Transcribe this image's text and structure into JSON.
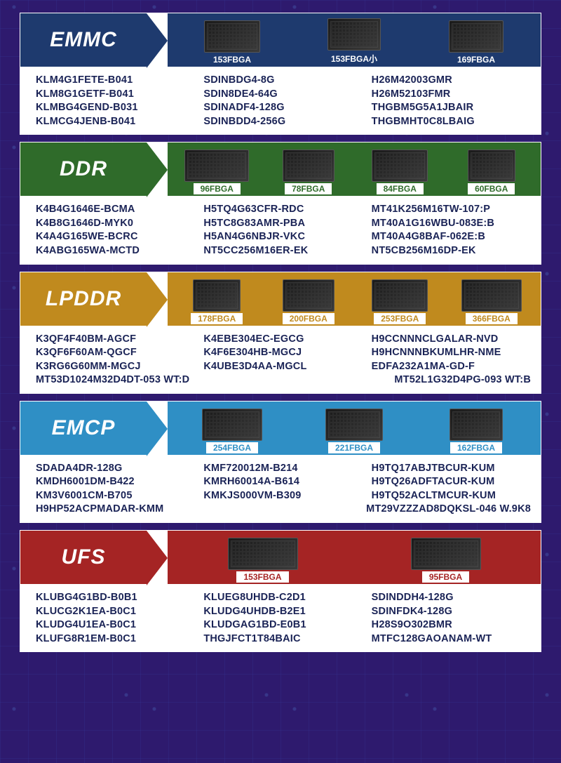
{
  "colors": {
    "page_bg": "#2e1a6e",
    "panel_bg": "#ffffff",
    "part_text": "#1a2356"
  },
  "sections": [
    {
      "title": "EMMC",
      "title_bg": "#1e3a6e",
      "chips_bg": "#1e3a6e",
      "chip_label_bg": "#1e3a6e",
      "chip_label_color": "#ffffff",
      "chips": [
        {
          "label": "153FBGA",
          "w": 80
        },
        {
          "label": "153FBGA小",
          "w": 76
        },
        {
          "label": "169FBGA",
          "w": 78
        }
      ],
      "cols": [
        [
          "KLM4G1FETE-B041",
          "KLM8G1GETF-B041",
          "KLMBG4GEND-B031",
          "KLMCG4JENB-B041"
        ],
        [
          "SDINBDG4-8G",
          "SDIN8DE4-64G",
          "SDINADF4-128G",
          "SDINBDD4-256G"
        ],
        [
          "H26M42003GMR",
          "H26M52103FMR",
          "THGBM5G5A1JBAIR",
          "THGBMHT0C8LBAIG"
        ]
      ]
    },
    {
      "title": "DDR",
      "title_bg": "#2f6b2a",
      "chips_bg": "#2f6b2a",
      "chip_label_bg": "#ffffff",
      "chip_label_color": "#2f6b2a",
      "chips": [
        {
          "label": "96FBGA",
          "w": 92
        },
        {
          "label": "78FBGA",
          "w": 74
        },
        {
          "label": "84FBGA",
          "w": 80
        },
        {
          "label": "60FBGA",
          "w": 68
        }
      ],
      "cols": [
        [
          "K4B4G1646E-BCMA",
          "K4B8G1646D-MYK0",
          "K4A4G165WE-BCRC",
          "K4ABG165WA-MCTD"
        ],
        [
          "H5TQ4G63CFR-RDC",
          "H5TC8G83AMR-PBA",
          "H5AN4G6NBJR-VKC",
          "NT5CC256M16ER-EK"
        ],
        [
          "MT41K256M16TW-107:P",
          "MT40A1G16WBU-083E:B",
          "MT40A4G8BAF-062E:B",
          "NT5CB256M16DP-EK"
        ]
      ]
    },
    {
      "title": "LPDDR",
      "title_bg": "#c08a1e",
      "chips_bg": "#c08a1e",
      "chip_label_bg": "#ffffff",
      "chip_label_color": "#c08a1e",
      "chips": [
        {
          "label": "178FBGA",
          "w": 68
        },
        {
          "label": "200FBGA",
          "w": 74
        },
        {
          "label": "253FBGA",
          "w": 80
        },
        {
          "label": "366FBGA",
          "w": 86
        }
      ],
      "cols": [
        [
          "K3QF4F40BM-AGCF",
          "K3QF6F60AM-QGCF",
          "K3RG6G60MM-MGCJ"
        ],
        [
          "K4EBE304EC-EGCG",
          "K4F6E304HB-MGCJ",
          "K4UBE3D4AA-MGCL"
        ],
        [
          "H9CCNNNCLGALAR-NVD",
          "H9HCNNNBKUMLHR-NME",
          "EDFA232A1MA-GD-F"
        ]
      ],
      "extra_rows": [
        [
          "MT53D1024M32D4DT-053 WT:D",
          "MT52L1G32D4PG-093 WT:B"
        ]
      ]
    },
    {
      "title": "EMCP",
      "title_bg": "#2f8fc5",
      "chips_bg": "#2f8fc5",
      "chip_label_bg": "#ffffff",
      "chip_label_color": "#2f8fc5",
      "chips": [
        {
          "label": "254FBGA",
          "w": 86
        },
        {
          "label": "221FBGA",
          "w": 82
        },
        {
          "label": "162FBGA",
          "w": 76
        }
      ],
      "cols": [
        [
          "SDADA4DR-128G",
          "KMDH6001DM-B422",
          "KM3V6001CM-B705"
        ],
        [
          "KMF720012M-B214",
          "KMRH60014A-B614",
          "KMKJS000VM-B309"
        ],
        [
          "H9TQ17ABJTBCUR-KUM",
          "H9TQ26ADFTACUR-KUM",
          "H9TQ52ACLTMCUR-KUM"
        ]
      ],
      "extra_rows": [
        [
          "H9HP52ACPMADAR-KMM",
          "MT29VZZZAD8DQKSL-046 W.9K8"
        ]
      ]
    },
    {
      "title": "UFS",
      "title_bg": "#a52424",
      "chips_bg": "#a52424",
      "chip_label_bg": "#ffffff",
      "chip_label_color": "#a52424",
      "chips": [
        {
          "label": "153FBGA",
          "w": 100
        },
        {
          "label": "95FBGA",
          "w": 100
        }
      ],
      "cols": [
        [
          "KLUBG4G1BD-B0B1",
          "KLUCG2K1EA-B0C1",
          "KLUDG4U1EA-B0C1",
          "KLUFG8R1EM-B0C1"
        ],
        [
          "KLUEG8UHDB-C2D1",
          "KLUDG4UHDB-B2E1",
          "KLUDGAG1BD-E0B1",
          "THGJFCT1T84BAIC"
        ],
        [
          "SDINDDH4-128G",
          "SDINFDK4-128G",
          "H28S9O302BMR",
          "MTFC128GAOANAM-WT"
        ]
      ]
    }
  ]
}
